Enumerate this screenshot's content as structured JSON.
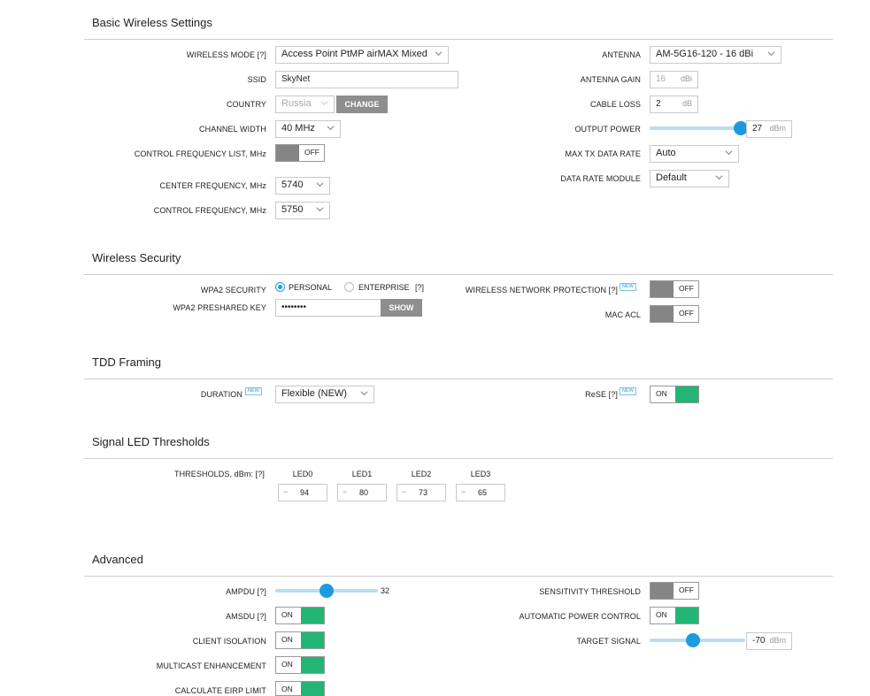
{
  "sections": {
    "basic": "Basic Wireless Settings",
    "security": "Wireless Security",
    "tdd": "TDD Framing",
    "led": "Signal LED Thresholds",
    "advanced": "Advanced"
  },
  "basic": {
    "wireless_mode_label": "WIRELESS MODE [?]",
    "wireless_mode_value": "Access Point PtMP airMAX Mixed",
    "ssid_label": "SSID",
    "ssid_value": "SkyNet",
    "country_label": "COUNTRY",
    "country_value": "Russia",
    "change_button": "CHANGE",
    "channel_width_label": "CHANNEL WIDTH",
    "channel_width_value": "40 MHz",
    "control_freq_list_label": "CONTROL FREQUENCY LIST, MHz",
    "control_freq_list_toggle": "OFF",
    "center_freq_label": "CENTER FREQUENCY, MHz",
    "center_freq_value": "5740",
    "control_freq_label": "CONTROL FREQUENCY, MHz",
    "control_freq_value": "5750",
    "antenna_label": "ANTENNA",
    "antenna_value": "AM-5G16-120 - 16 dBi",
    "antenna_gain_label": "ANTENNA GAIN",
    "antenna_gain_value": "16",
    "antenna_gain_unit": "dBi",
    "cable_loss_label": "CABLE LOSS",
    "cable_loss_value": "2",
    "cable_loss_unit": "dB",
    "output_power_label": "OUTPUT POWER",
    "output_power_value": "27",
    "output_power_unit": "dBm",
    "max_tx_label": "MAX TX DATA RATE",
    "max_tx_value": "Auto",
    "data_rate_module_label": "DATA RATE MODULE",
    "data_rate_module_value": "Default"
  },
  "security": {
    "wpa2_label": "WPA2 SECURITY",
    "personal": "PERSONAL",
    "enterprise": "ENTERPRISE",
    "enterprise_help": "[?]",
    "selected": "personal",
    "psk_label": "WPA2 PRESHARED KEY",
    "psk_value": "••••••••",
    "show_button": "SHOW",
    "wnp_label": "WIRELESS NETWORK PROTECTION [?]",
    "wnp_badge": "NEW",
    "wnp_toggle": "OFF",
    "mac_acl_label": "MAC ACL",
    "mac_acl_toggle": "OFF"
  },
  "tdd": {
    "duration_label": "DURATION",
    "duration_badge": "NEW",
    "duration_value": "Flexible (NEW)",
    "rese_label": "ReSE [?]",
    "rese_badge": "NEW",
    "rese_toggle": "ON"
  },
  "led": {
    "thresholds_label": "THRESHOLDS, dBm: [?]",
    "items": [
      {
        "name": "LED0",
        "value": "94"
      },
      {
        "name": "LED1",
        "value": "80"
      },
      {
        "name": "LED2",
        "value": "73"
      },
      {
        "name": "LED3",
        "value": "65"
      }
    ],
    "minus": "−"
  },
  "advanced": {
    "ampdu_label": "AMPDU [?]",
    "ampdu_value": "32",
    "ampdu_level": 0.5,
    "amsdu_label": "AMSDU [?]",
    "amsdu_toggle": "ON",
    "client_isolation_label": "CLIENT ISOLATION",
    "client_isolation_toggle": "ON",
    "multicast_label": "MULTICAST ENHANCEMENT",
    "multicast_toggle": "ON",
    "eirp_label": "CALCULATE EIRP LIMIT",
    "eirp_toggle": "ON",
    "sensitivity_label": "SENSITIVITY THRESHOLD",
    "sensitivity_toggle": "OFF",
    "apc_label": "AUTOMATIC POWER CONTROL",
    "apc_toggle": "ON",
    "target_signal_label": "TARGET SIGNAL",
    "target_signal_value": "-70",
    "target_signal_unit": "dBm",
    "target_signal_level": 0.45
  },
  "output_power_level": 0.99,
  "colors": {
    "accent": "#1c9be0",
    "toggle_on": "#22b573",
    "toggle_off": "#858585",
    "button": "#8e8e8e"
  }
}
